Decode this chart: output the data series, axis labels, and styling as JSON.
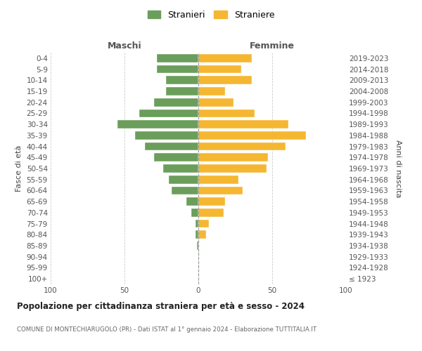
{
  "age_groups": [
    "100+",
    "95-99",
    "90-94",
    "85-89",
    "80-84",
    "75-79",
    "70-74",
    "65-69",
    "60-64",
    "55-59",
    "50-54",
    "45-49",
    "40-44",
    "35-39",
    "30-34",
    "25-29",
    "20-24",
    "15-19",
    "10-14",
    "5-9",
    "0-4"
  ],
  "birth_years": [
    "≤ 1923",
    "1924-1928",
    "1929-1933",
    "1934-1938",
    "1939-1943",
    "1944-1948",
    "1949-1953",
    "1954-1958",
    "1959-1963",
    "1964-1968",
    "1969-1973",
    "1974-1978",
    "1979-1983",
    "1984-1988",
    "1989-1993",
    "1994-1998",
    "1999-2003",
    "2004-2008",
    "2009-2013",
    "2014-2018",
    "2019-2023"
  ],
  "males": [
    0,
    0,
    0,
    1,
    2,
    2,
    5,
    8,
    18,
    20,
    24,
    30,
    36,
    43,
    55,
    40,
    30,
    22,
    22,
    28,
    28
  ],
  "females": [
    0,
    0,
    0,
    0,
    5,
    7,
    17,
    18,
    30,
    27,
    46,
    47,
    59,
    73,
    61,
    38,
    24,
    18,
    36,
    29,
    36
  ],
  "male_color": "#6a9e5a",
  "female_color": "#f5b731",
  "background_color": "#ffffff",
  "grid_color": "#cccccc",
  "title": "Popolazione per cittadinanza straniera per età e sesso - 2024",
  "subtitle": "COMUNE DI MONTECHIARUGOLO (PR) - Dati ISTAT al 1° gennaio 2024 - Elaborazione TUTTITALIA.IT",
  "xlabel_left": "Maschi",
  "xlabel_right": "Femmine",
  "ylabel_left": "Fasce di età",
  "ylabel_right": "Anni di nascita",
  "legend_male": "Stranieri",
  "legend_female": "Straniere",
  "xlim": 100,
  "bar_height": 0.75
}
